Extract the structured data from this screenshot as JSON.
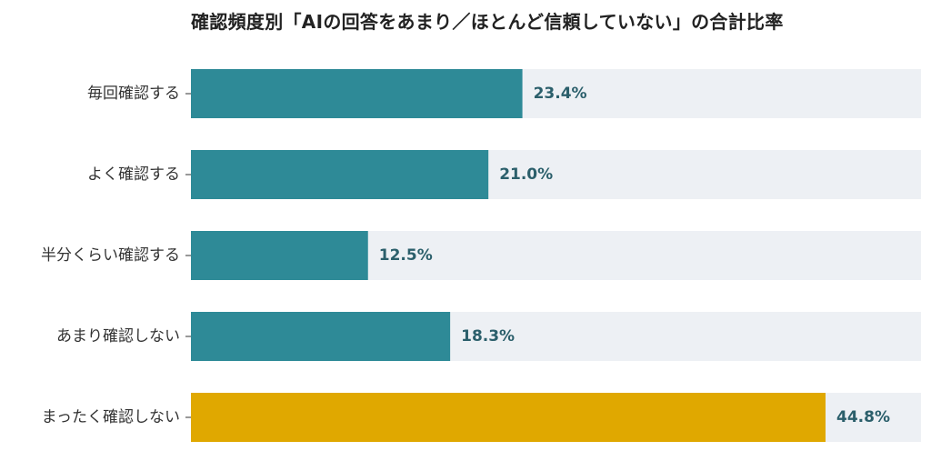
{
  "chart_data": {
    "type": "bar",
    "orientation": "horizontal",
    "title": "確認頻度別「AIの回答をあまり／ほとんど信頼していない」の合計比率",
    "categories": [
      "毎回確認する",
      "よく確認する",
      "半分くらい確認する",
      "あまり確認しない",
      "まったく確認しない"
    ],
    "values": [
      23.4,
      21.0,
      12.5,
      18.3,
      44.8
    ],
    "value_labels": [
      "23.4%",
      "21.0%",
      "12.5%",
      "18.3%",
      "44.8%"
    ],
    "unit": "%",
    "xlim": [
      0,
      44.8
    ],
    "highlight_index": 4,
    "grid": false,
    "legend": "none",
    "colors": {
      "bar": "#2e8a97",
      "highlight": "#e0a800",
      "track": "#edf0f4",
      "value_text": "#2b5f6b",
      "category_text": "#333333"
    }
  }
}
